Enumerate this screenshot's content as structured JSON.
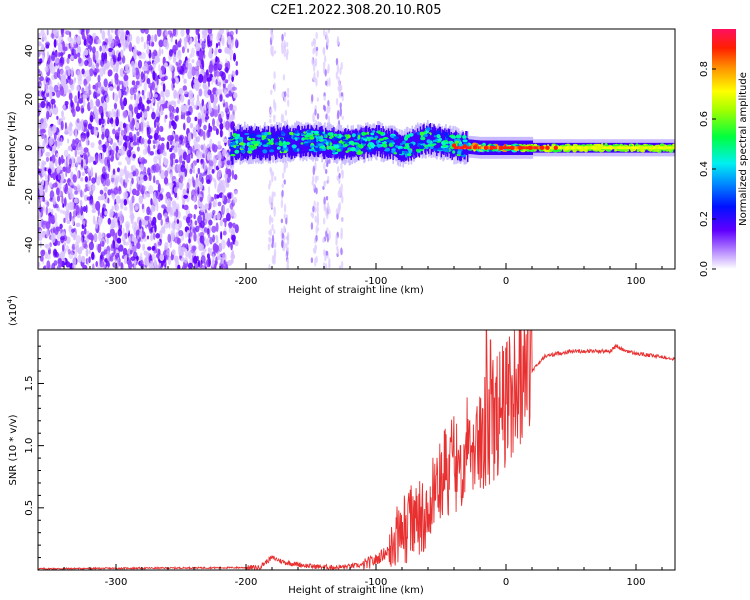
{
  "title": "C2E1.2022.308.20.10.R05",
  "chart_data": [
    {
      "type": "heatmap",
      "xlabel": "Height of straight line (km)",
      "ylabel": "Frequency (Hz)",
      "xlim": [
        -360,
        130
      ],
      "ylim": [
        -50,
        49
      ],
      "x_ticks": [
        -300,
        -200,
        -100,
        0,
        100
      ],
      "y_ticks": [
        -40,
        -20,
        0,
        20,
        40
      ],
      "colorbar": {
        "label": "Normalized spectral amplitude",
        "range": [
          0,
          0.96
        ],
        "ticks": [
          "0.0",
          "0.2",
          "0.4",
          "0.6",
          "0.8"
        ],
        "colors": [
          "#ffffff",
          "#a060ff",
          "#6000ff",
          "#0020ff",
          "#00a0ff",
          "#00ffd0",
          "#00ff40",
          "#a0ff00",
          "#ffff00",
          "#ffa000",
          "#ff2000",
          "#ff1060"
        ]
      },
      "regions": [
        {
          "name": "noise",
          "x_range": [
            -360,
            -207
          ],
          "freq_spread": [
            -50,
            49
          ],
          "amplitude": 0.1
        },
        {
          "name": "sparse-noise-streaks",
          "x_centers": [
            -180,
            -170,
            -147,
            -138,
            -128
          ],
          "amplitude": 0.05
        },
        {
          "name": "doppler-band",
          "points": [
            [
              -210,
              2
            ],
            [
              -180,
              2
            ],
            [
              -150,
              3
            ],
            [
              -120,
              1
            ],
            [
              -100,
              3
            ],
            [
              -80,
              0
            ],
            [
              -60,
              4
            ],
            [
              -40,
              1
            ],
            [
              -20,
              0
            ],
            [
              0,
              0
            ],
            [
              50,
              0
            ],
            [
              130,
              0
            ]
          ],
          "half_width": [
            6,
            3,
            2
          ],
          "amplitude": 0.6
        }
      ]
    },
    {
      "type": "line",
      "xlabel": "Height of straight line (km)",
      "ylabel": "SNR (10 * v/v)",
      "exponent_label": "(x10",
      "exponent": "4",
      "xlim": [
        -360,
        130
      ],
      "ylim": [
        0,
        1.93
      ],
      "x_ticks": [
        -300,
        -200,
        -100,
        0,
        100
      ],
      "y_ticks": [
        "0.5",
        "1.0",
        "1.5"
      ],
      "y_tick_values": [
        0.5,
        1.0,
        1.5
      ],
      "color": "#e83030",
      "baseline_points": [
        [
          -360,
          0.01
        ],
        [
          -190,
          0.02
        ],
        [
          -180,
          0.1
        ],
        [
          -170,
          0.06
        ],
        [
          -150,
          0.03
        ],
        [
          -130,
          0.02
        ],
        [
          -110,
          0.04
        ],
        [
          -100,
          0.08
        ],
        [
          -80,
          0.25
        ],
        [
          -60,
          0.45
        ],
        [
          -45,
          0.7
        ],
        [
          -30,
          0.9
        ],
        [
          -20,
          1.0
        ],
        [
          -10,
          1.1
        ],
        [
          0,
          1.25
        ],
        [
          10,
          1.45
        ],
        [
          20,
          1.6
        ],
        [
          30,
          1.72
        ],
        [
          50,
          1.76
        ],
        [
          80,
          1.76
        ],
        [
          85,
          1.8
        ],
        [
          90,
          1.77
        ],
        [
          100,
          1.74
        ],
        [
          130,
          1.7
        ]
      ],
      "spike_peaks": [
        [
          -15,
          1.93
        ],
        [
          -12,
          1.85
        ],
        [
          -35,
          1.0
        ],
        [
          -28,
          1.2
        ],
        [
          -8,
          1.5
        ]
      ]
    }
  ]
}
